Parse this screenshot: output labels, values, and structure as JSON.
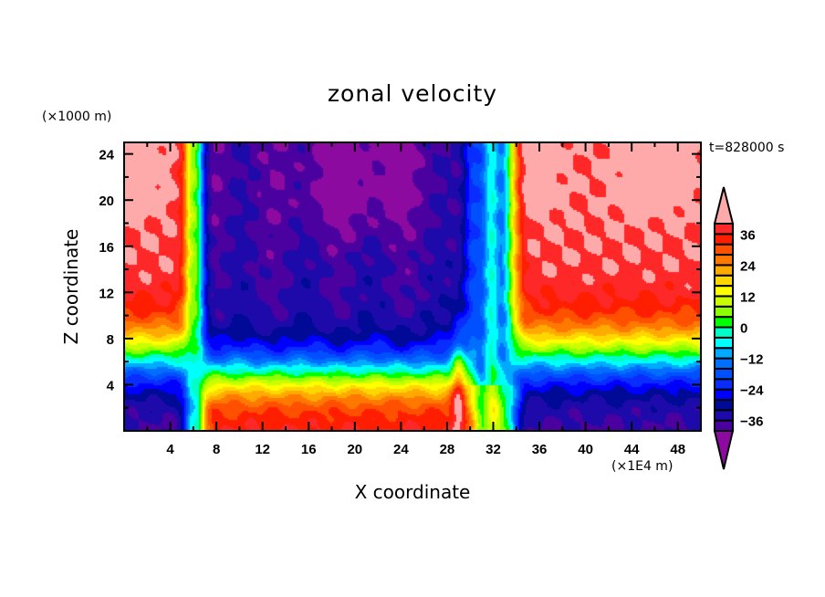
{
  "chart_data": {
    "type": "heatmap",
    "subtype": "filled-contour",
    "title": "zonal velocity",
    "xlabel": "X coordinate",
    "ylabel": "Z coordinate",
    "x_unit": "(×1E4 m)",
    "y_unit": "(×1000 m)",
    "time_annotation": "t=828000 s",
    "xlim": [
      0,
      50
    ],
    "ylim": [
      0,
      25
    ],
    "x_ticks": [
      4,
      8,
      12,
      16,
      20,
      24,
      28,
      32,
      36,
      40,
      44,
      48
    ],
    "x_minor_step": 2,
    "y_ticks": [
      4,
      8,
      12,
      16,
      20,
      24
    ],
    "y_minor_step": 2,
    "contour_levels": {
      "min": -40,
      "max": 40,
      "step": 4
    },
    "colorbar": {
      "labels": [
        36,
        24,
        12,
        0,
        -12,
        -24,
        -36
      ],
      "extend": "both",
      "position": "right",
      "colors": [
        "#6e0aa0",
        "#8c0aa0",
        "#4b00a0",
        "#1e0aaa",
        "#000a96",
        "#0000ff",
        "#0a2dff",
        "#0050ff",
        "#006eff",
        "#00aaff",
        "#00ffff",
        "#00ffc8",
        "#00ff82",
        "#00ff00",
        "#8cff00",
        "#c8ff00",
        "#ffff00",
        "#ffd700",
        "#ffaa00",
        "#ff7800",
        "#ff5000",
        "#ff1e00",
        "#ff2828",
        "#ffaaaa"
      ],
      "under_color": "#8c0aa0",
      "over_color": "#ffaaaa"
    },
    "field_description": "Zonal velocity u(x,z). Upper layer: positive (up to >40) for x<5 and x>34, strongly negative (< -36) for 8<x<29. Lower layer (z<6) reversed in sign. Narrow transition jets near x=6 and x=29-33.",
    "regions": [
      {
        "name": "left-upper",
        "x_range": [
          0,
          5
        ],
        "z_range": [
          10,
          25
        ],
        "value_range": [
          32,
          44
        ]
      },
      {
        "name": "central-upper",
        "x_range": [
          7,
          29
        ],
        "z_range": [
          12,
          25
        ],
        "value_range": [
          -44,
          -28
        ]
      },
      {
        "name": "right-upper",
        "x_range": [
          34,
          50
        ],
        "z_range": [
          12,
          25
        ],
        "value_range": [
          32,
          44
        ]
      },
      {
        "name": "central-lower",
        "x_range": [
          7,
          29
        ],
        "z_range": [
          0,
          3
        ],
        "value_range": [
          28,
          40
        ]
      },
      {
        "name": "right-lower",
        "x_range": [
          34,
          50
        ],
        "z_range": [
          0,
          2
        ],
        "value_range": [
          -40,
          -32
        ]
      },
      {
        "name": "left-lower",
        "x_range": [
          0,
          5
        ],
        "z_range": [
          0,
          2
        ],
        "value_range": [
          -40,
          -32
        ]
      }
    ]
  }
}
